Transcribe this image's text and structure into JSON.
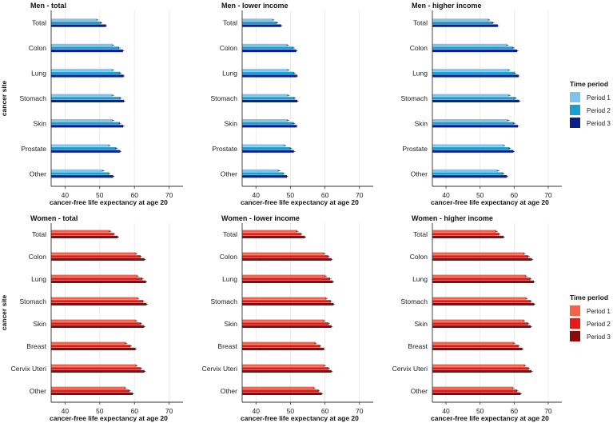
{
  "colors": {
    "men": [
      "#7ec3ea",
      "#1a9fd0",
      "#0a1e8c"
    ],
    "women": [
      "#f7604a",
      "#e61a1a",
      "#8b0a0a"
    ]
  },
  "legends": [
    {
      "title": "Time period",
      "labels": [
        "Period 1",
        "Period 2",
        "Period 3"
      ],
      "palette": "men"
    },
    {
      "title": "Time period",
      "labels": [
        "Period 1",
        "Period 2",
        "Period 3"
      ],
      "palette": "women"
    }
  ],
  "chart_data": [
    {
      "type": "bar",
      "orientation": "horizontal",
      "title": "Men - total",
      "palette": "men",
      "xlabel": "cancer-free life expectancy at age 20",
      "ylabel": "cancer site",
      "xlim": [
        36,
        74
      ],
      "xticks": [
        "40",
        "50",
        "60",
        "70"
      ],
      "categories": [
        "Total",
        "Colon",
        "Lung",
        "Stomach",
        "Skin",
        "Prostate",
        "Other"
      ],
      "series": [
        {
          "name": "Period 1",
          "values": [
            49.3,
            53.8,
            53.8,
            53.8,
            53.8,
            52.8,
            51.0
          ]
        },
        {
          "name": "Period 2",
          "values": [
            50.4,
            55.6,
            55.9,
            56.0,
            55.8,
            54.8,
            52.7
          ]
        },
        {
          "name": "Period 3",
          "values": [
            51.8,
            56.7,
            56.9,
            57.0,
            56.8,
            55.9,
            53.9
          ]
        }
      ]
    },
    {
      "type": "bar",
      "orientation": "horizontal",
      "title": "Men - lower income",
      "palette": "men",
      "xlabel": "cancer-free life expectancy at age 20",
      "ylabel": "",
      "xlim": [
        36,
        74
      ],
      "xticks": [
        "40",
        "50",
        "60",
        "70"
      ],
      "categories": [
        "Total",
        "Colon",
        "Lung",
        "Stomach",
        "Skin",
        "Prostate",
        "Other"
      ],
      "series": [
        {
          "name": "Period 1",
          "values": [
            45.0,
            49.2,
            49.4,
            49.4,
            49.3,
            48.4,
            46.7
          ]
        },
        {
          "name": "Period 2",
          "values": [
            46.1,
            50.9,
            51.1,
            51.2,
            51.0,
            50.1,
            48.0
          ]
        },
        {
          "name": "Period 3",
          "values": [
            47.3,
            51.7,
            51.9,
            52.0,
            51.8,
            51.0,
            49.0
          ]
        }
      ]
    },
    {
      "type": "bar",
      "orientation": "horizontal",
      "title": "Men - higher income",
      "palette": "men",
      "xlabel": "cancer-free life expectancy at age 20",
      "ylabel": "",
      "xlim": [
        36,
        74
      ],
      "xticks": [
        "40",
        "50",
        "60",
        "70"
      ],
      "categories": [
        "Total",
        "Colon",
        "Lung",
        "Stomach",
        "Skin",
        "Prostate",
        "Other"
      ],
      "series": [
        {
          "name": "Period 1",
          "values": [
            52.6,
            58.0,
            58.5,
            58.6,
            58.3,
            57.0,
            55.3
          ]
        },
        {
          "name": "Period 2",
          "values": [
            53.8,
            59.8,
            60.2,
            60.4,
            60.0,
            58.7,
            56.8
          ]
        },
        {
          "name": "Period 3",
          "values": [
            55.2,
            60.9,
            61.3,
            61.5,
            61.1,
            59.8,
            57.9
          ]
        }
      ]
    },
    {
      "type": "bar",
      "orientation": "horizontal",
      "title": "Women - total",
      "palette": "women",
      "xlabel": "cancer-free life expectancy at age 20",
      "ylabel": "cancer site",
      "xlim": [
        36,
        74
      ],
      "xticks": [
        "40",
        "50",
        "60",
        "70"
      ],
      "categories": [
        "Total",
        "Colon",
        "Lung",
        "Stomach",
        "Skin",
        "Breast",
        "Cervix Uteri",
        "Other"
      ],
      "series": [
        {
          "name": "Period 1",
          "values": [
            53.0,
            60.5,
            60.9,
            61.0,
            60.5,
            57.6,
            60.6,
            57.4
          ]
        },
        {
          "name": "Period 2",
          "values": [
            54.1,
            61.8,
            62.3,
            62.5,
            61.9,
            58.9,
            61.9,
            58.6
          ]
        },
        {
          "name": "Period 3",
          "values": [
            55.2,
            62.9,
            63.3,
            63.5,
            62.8,
            60.3,
            62.9,
            59.5
          ]
        }
      ]
    },
    {
      "type": "bar",
      "orientation": "horizontal",
      "title": "Women - lower income",
      "palette": "women",
      "xlabel": "cancer-free life expectancy at age 20",
      "ylabel": "",
      "xlim": [
        36,
        74
      ],
      "xticks": [
        "40",
        "50",
        "60",
        "70"
      ],
      "categories": [
        "Total",
        "Colon",
        "Lung",
        "Stomach",
        "Skin",
        "Breast",
        "Cervix Uteri",
        "Other"
      ],
      "series": [
        {
          "name": "Period 1",
          "values": [
            52.0,
            59.8,
            60.2,
            60.4,
            59.8,
            57.3,
            59.9,
            56.9
          ]
        },
        {
          "name": "Period 2",
          "values": [
            53.1,
            61.0,
            61.5,
            61.7,
            61.1,
            58.6,
            61.1,
            58.2
          ]
        },
        {
          "name": "Period 3",
          "values": [
            54.2,
            61.9,
            62.3,
            62.5,
            61.9,
            59.7,
            61.9,
            59.1
          ]
        }
      ]
    },
    {
      "type": "bar",
      "orientation": "horizontal",
      "title": "Women - higher income",
      "palette": "women",
      "xlabel": "cancer-free life expectancy at age 20",
      "ylabel": "",
      "xlim": [
        36,
        74
      ],
      "xticks": [
        "40",
        "50",
        "60",
        "70"
      ],
      "categories": [
        "Total",
        "Colon",
        "Lung",
        "Stomach",
        "Skin",
        "Breast",
        "Cervix Uteri",
        "Other"
      ],
      "series": [
        {
          "name": "Period 1",
          "values": [
            54.8,
            63.0,
            63.5,
            63.6,
            62.9,
            60.0,
            63.2,
            59.7
          ]
        },
        {
          "name": "Period 2",
          "values": [
            55.6,
            64.2,
            64.8,
            64.9,
            64.1,
            61.3,
            64.3,
            60.9
          ]
        },
        {
          "name": "Period 3",
          "values": [
            56.9,
            65.2,
            65.8,
            65.9,
            64.9,
            62.4,
            65.1,
            61.9
          ]
        }
      ]
    }
  ]
}
